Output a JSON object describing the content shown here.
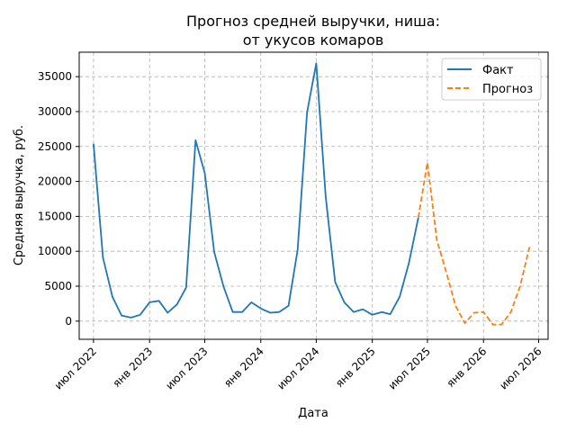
{
  "chart_data": {
    "type": "line",
    "title": [
      "Прогноз средней выручки, ниша:",
      "от укусов комаров"
    ],
    "xlabel": "Дата",
    "ylabel": "Средняя выручка, руб.",
    "ylim": [
      -2600,
      38500
    ],
    "xlim": [
      "2022-05-15",
      "2026-08-01"
    ],
    "grid": true,
    "legend_position": "top-right",
    "x_ticks": [
      {
        "date": "2022-07-01",
        "label": "июл 2022"
      },
      {
        "date": "2023-01-01",
        "label": "янв 2023"
      },
      {
        "date": "2023-07-01",
        "label": "июл 2023"
      },
      {
        "date": "2024-01-01",
        "label": "янв 2024"
      },
      {
        "date": "2024-07-01",
        "label": "июл 2024"
      },
      {
        "date": "2025-01-01",
        "label": "янв 2025"
      },
      {
        "date": "2025-07-01",
        "label": "июл 2025"
      },
      {
        "date": "2026-01-01",
        "label": "янв 2026"
      },
      {
        "date": "2026-07-01",
        "label": "июл 2026"
      }
    ],
    "y_ticks": [
      0,
      5000,
      10000,
      15000,
      20000,
      25000,
      30000,
      35000
    ],
    "series": [
      {
        "name": "Факт",
        "color": "#1f77b4",
        "style": "solid",
        "points": [
          {
            "x": "2022-07-01",
            "y": 25400
          },
          {
            "x": "2022-08-01",
            "y": 9100
          },
          {
            "x": "2022-09-01",
            "y": 3500
          },
          {
            "x": "2022-10-01",
            "y": 800
          },
          {
            "x": "2022-11-01",
            "y": 500
          },
          {
            "x": "2022-12-01",
            "y": 900
          },
          {
            "x": "2023-01-01",
            "y": 2700
          },
          {
            "x": "2023-02-01",
            "y": 2900
          },
          {
            "x": "2023-03-01",
            "y": 1200
          },
          {
            "x": "2023-04-01",
            "y": 2400
          },
          {
            "x": "2023-05-01",
            "y": 4800
          },
          {
            "x": "2023-06-01",
            "y": 25900
          },
          {
            "x": "2023-07-01",
            "y": 21200
          },
          {
            "x": "2023-08-01",
            "y": 9900
          },
          {
            "x": "2023-09-01",
            "y": 4900
          },
          {
            "x": "2023-10-01",
            "y": 1300
          },
          {
            "x": "2023-11-01",
            "y": 1300
          },
          {
            "x": "2023-12-01",
            "y": 2700
          },
          {
            "x": "2024-01-01",
            "y": 1800
          },
          {
            "x": "2024-02-01",
            "y": 1200
          },
          {
            "x": "2024-03-01",
            "y": 1300
          },
          {
            "x": "2024-04-01",
            "y": 2200
          },
          {
            "x": "2024-05-01",
            "y": 10200
          },
          {
            "x": "2024-06-01",
            "y": 29900
          },
          {
            "x": "2024-07-01",
            "y": 36900
          },
          {
            "x": "2024-08-01",
            "y": 17800
          },
          {
            "x": "2024-09-01",
            "y": 5600
          },
          {
            "x": "2024-10-01",
            "y": 2700
          },
          {
            "x": "2024-11-01",
            "y": 1300
          },
          {
            "x": "2024-12-01",
            "y": 1700
          },
          {
            "x": "2025-01-01",
            "y": 900
          },
          {
            "x": "2025-02-01",
            "y": 1300
          },
          {
            "x": "2025-03-01",
            "y": 1000
          },
          {
            "x": "2025-04-01",
            "y": 3500
          },
          {
            "x": "2025-05-01",
            "y": 8300
          },
          {
            "x": "2025-06-01",
            "y": 14800
          }
        ]
      },
      {
        "name": "Прогноз",
        "color": "#ff7f0e",
        "style": "dashed",
        "points": [
          {
            "x": "2025-06-01",
            "y": 14800
          },
          {
            "x": "2025-07-01",
            "y": 22700
          },
          {
            "x": "2025-08-01",
            "y": 11600
          },
          {
            "x": "2025-09-01",
            "y": 7000
          },
          {
            "x": "2025-10-01",
            "y": 2200
          },
          {
            "x": "2025-11-01",
            "y": -300
          },
          {
            "x": "2025-12-01",
            "y": 1200
          },
          {
            "x": "2026-01-01",
            "y": 1300
          },
          {
            "x": "2026-02-01",
            "y": -500
          },
          {
            "x": "2026-03-01",
            "y": -500
          },
          {
            "x": "2026-04-01",
            "y": 1300
          },
          {
            "x": "2026-05-01",
            "y": 5000
          },
          {
            "x": "2026-06-01",
            "y": 10600
          }
        ]
      }
    ]
  }
}
